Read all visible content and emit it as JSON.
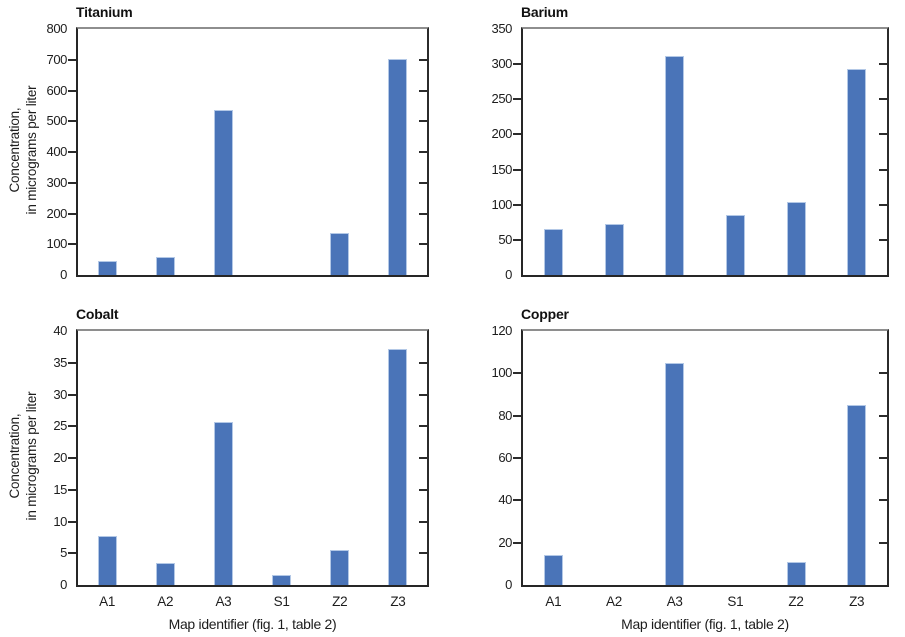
{
  "figure": {
    "ylabel_line1": "Concentration,",
    "ylabel_line2": "in micrograms per liter",
    "xlabel": "Map identifier (fig. 1, table 2)",
    "bar_color": "#4a74b8",
    "bar_edge_color": "#b3c8e6",
    "axis_color": "#2b2b2b"
  },
  "chart_data": [
    {
      "type": "bar",
      "title": "Titanium",
      "categories": [
        "A1",
        "A2",
        "A3",
        "S1",
        "Z2",
        "Z3"
      ],
      "values": [
        46,
        59,
        537,
        0,
        136,
        703
      ],
      "ylim": [
        0,
        800
      ],
      "ytick_interval": 100,
      "ylabel": "Concentration, in micrograms per liter",
      "xlabel": "",
      "grid": false,
      "legend": "none"
    },
    {
      "type": "bar",
      "title": "Barium",
      "categories": [
        "A1",
        "A2",
        "A3",
        "S1",
        "Z2",
        "Z3"
      ],
      "values": [
        65,
        73,
        312,
        86,
        104,
        293
      ],
      "ylim": [
        0,
        350
      ],
      "ytick_interval": 50,
      "ylabel": "",
      "xlabel": "",
      "grid": false,
      "legend": "none"
    },
    {
      "type": "bar",
      "title": "Cobalt",
      "categories": [
        "A1",
        "A2",
        "A3",
        "S1",
        "Z2",
        "Z3"
      ],
      "values": [
        7.7,
        3.5,
        25.7,
        1.6,
        5.5,
        37.1
      ],
      "ylim": [
        0,
        40
      ],
      "ytick_interval": 5,
      "ylabel": "Concentration, in micrograms per liter",
      "xlabel": "Map identifier (fig. 1, table 2)",
      "grid": false,
      "legend": "none"
    },
    {
      "type": "bar",
      "title": "Copper",
      "categories": [
        "A1",
        "A2",
        "A3",
        "S1",
        "Z2",
        "Z3"
      ],
      "values": [
        14,
        0,
        105,
        0,
        11,
        85
      ],
      "ylim": [
        0,
        120
      ],
      "ytick_interval": 20,
      "ylabel": "",
      "xlabel": "Map identifier (fig. 1, table 2)",
      "grid": false,
      "legend": "none"
    }
  ]
}
